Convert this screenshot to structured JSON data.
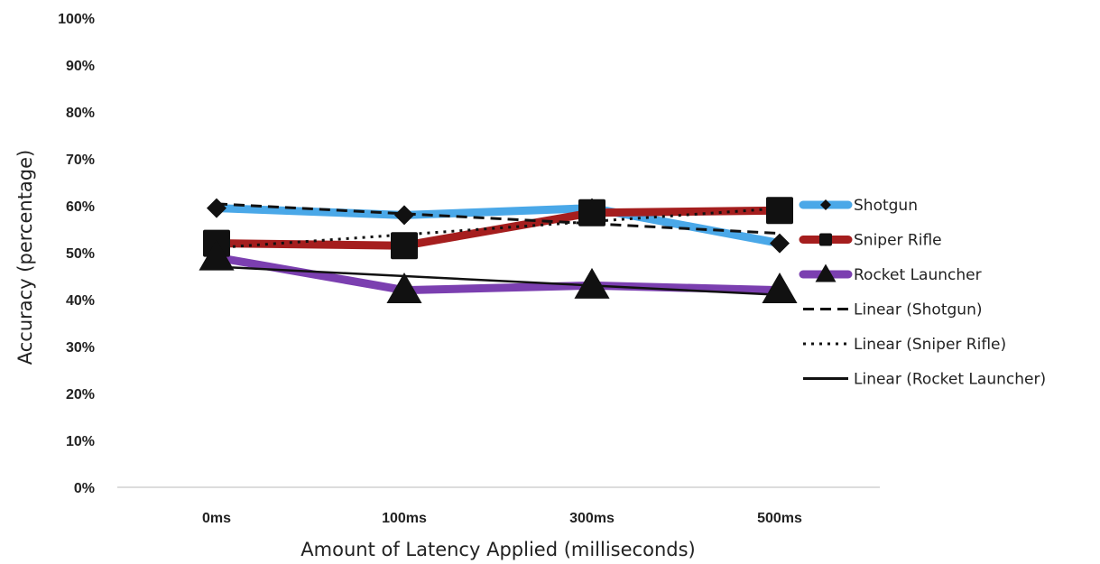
{
  "chart_data": {
    "type": "line",
    "title": "",
    "xlabel": "Amount of Latency Applied (milliseconds)",
    "ylabel": "Accuracy (percentage)",
    "categories": [
      "0ms",
      "100ms",
      "300ms",
      "500ms"
    ],
    "ylim": [
      0,
      100
    ],
    "y_ticks": [
      0,
      10,
      20,
      30,
      40,
      50,
      60,
      70,
      80,
      90,
      100
    ],
    "y_tick_labels": [
      "0%",
      "10%",
      "20%",
      "30%",
      "40%",
      "50%",
      "60%",
      "70%",
      "80%",
      "90%",
      "100%"
    ],
    "grid": false,
    "legend_position": "right",
    "series": [
      {
        "name": "Shotgun",
        "values": [
          59.5,
          58,
          59.5,
          52
        ],
        "color": "#4aa8e8",
        "marker": "diamond"
      },
      {
        "name": "Sniper Rifle",
        "values": [
          52,
          51.5,
          58.5,
          59
        ],
        "color": "#a51e1e",
        "marker": "square"
      },
      {
        "name": "Rocket Launcher",
        "values": [
          49,
          42,
          43,
          42
        ],
        "color": "#7b3fb0",
        "marker": "triangle"
      }
    ],
    "trendlines": [
      {
        "name": "Linear (Shotgun)",
        "style": "dashed",
        "of": "Shotgun"
      },
      {
        "name": "Linear (Sniper Rifle)",
        "style": "dotted",
        "of": "Sniper Rifle"
      },
      {
        "name": "Linear (Rocket Launcher)",
        "style": "solid",
        "of": "Rocket Launcher"
      }
    ]
  }
}
